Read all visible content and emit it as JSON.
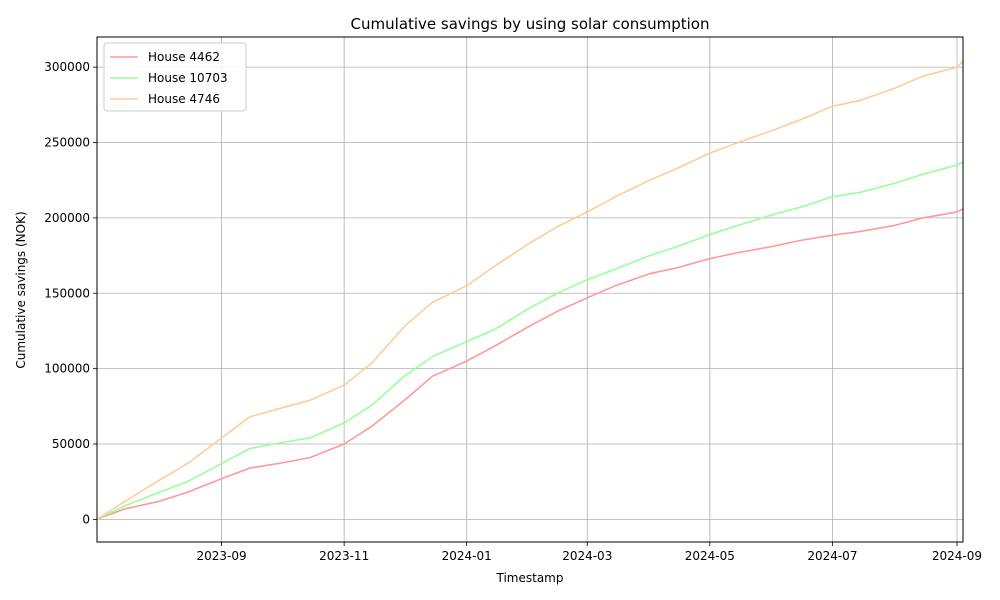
{
  "chart_data": {
    "type": "line",
    "title": "Cumulative savings by using solar consumption",
    "xlabel": "Timestamp",
    "ylabel": "Cumulative savings (NOK)",
    "x_ticks": [
      "2023-09",
      "2023-11",
      "2024-01",
      "2024-03",
      "2024-05",
      "2024-07",
      "2024-09"
    ],
    "y_ticks": [
      "0",
      "50000",
      "100000",
      "150000",
      "200000",
      "250000",
      "300000"
    ],
    "xlim": [
      "2023-07-01",
      "2024-09-04"
    ],
    "ylim": [
      -15000,
      320000
    ],
    "grid": true,
    "legend_position": "top-left",
    "series": [
      {
        "name": "House 4462",
        "color": "#ff9999",
        "points": [
          [
            "2023-07-01",
            0
          ],
          [
            "2023-07-15",
            7000
          ],
          [
            "2023-08-01",
            12000
          ],
          [
            "2023-08-15",
            18000
          ],
          [
            "2023-09-01",
            27000
          ],
          [
            "2023-09-15",
            34000
          ],
          [
            "2023-10-01",
            37500
          ],
          [
            "2023-10-15",
            41000
          ],
          [
            "2023-11-01",
            50000
          ],
          [
            "2023-11-15",
            62000
          ],
          [
            "2023-12-01",
            79000
          ],
          [
            "2023-12-15",
            95000
          ],
          [
            "2024-01-01",
            105000
          ],
          [
            "2024-01-15",
            115000
          ],
          [
            "2024-02-01",
            128000
          ],
          [
            "2024-02-15",
            138000
          ],
          [
            "2024-03-01",
            147000
          ],
          [
            "2024-03-15",
            155000
          ],
          [
            "2024-04-01",
            163000
          ],
          [
            "2024-04-15",
            167000
          ],
          [
            "2024-05-01",
            173000
          ],
          [
            "2024-05-15",
            177000
          ],
          [
            "2024-06-01",
            181000
          ],
          [
            "2024-06-15",
            185000
          ],
          [
            "2024-07-01",
            188500
          ],
          [
            "2024-07-15",
            191000
          ],
          [
            "2024-08-01",
            195000
          ],
          [
            "2024-08-15",
            200000
          ],
          [
            "2024-09-01",
            204000
          ],
          [
            "2024-09-04",
            206000
          ]
        ]
      },
      {
        "name": "House 10703",
        "color": "#99ff99",
        "points": [
          [
            "2023-07-01",
            0
          ],
          [
            "2023-07-15",
            9000
          ],
          [
            "2023-08-01",
            18000
          ],
          [
            "2023-08-15",
            25000
          ],
          [
            "2023-09-01",
            37000
          ],
          [
            "2023-09-15",
            47000
          ],
          [
            "2023-10-01",
            51000
          ],
          [
            "2023-10-15",
            54000
          ],
          [
            "2023-11-01",
            64000
          ],
          [
            "2023-11-15",
            76000
          ],
          [
            "2023-12-01",
            95000
          ],
          [
            "2023-12-15",
            108000
          ],
          [
            "2024-01-01",
            118000
          ],
          [
            "2024-01-15",
            126000
          ],
          [
            "2024-02-01",
            140000
          ],
          [
            "2024-02-15",
            150000
          ],
          [
            "2024-03-01",
            159000
          ],
          [
            "2024-03-15",
            166000
          ],
          [
            "2024-04-01",
            175000
          ],
          [
            "2024-04-15",
            181000
          ],
          [
            "2024-05-01",
            189000
          ],
          [
            "2024-05-15",
            195000
          ],
          [
            "2024-06-01",
            202000
          ],
          [
            "2024-06-15",
            207000
          ],
          [
            "2024-07-01",
            214000
          ],
          [
            "2024-07-15",
            217000
          ],
          [
            "2024-08-01",
            223000
          ],
          [
            "2024-08-15",
            229000
          ],
          [
            "2024-09-01",
            235000
          ],
          [
            "2024-09-04",
            237000
          ]
        ]
      },
      {
        "name": "House 4746",
        "color": "#ffcc99",
        "points": [
          [
            "2023-07-01",
            0
          ],
          [
            "2023-07-15",
            12000
          ],
          [
            "2023-08-01",
            26000
          ],
          [
            "2023-08-15",
            37000
          ],
          [
            "2023-09-01",
            54000
          ],
          [
            "2023-09-15",
            68000
          ],
          [
            "2023-10-01",
            74000
          ],
          [
            "2023-10-15",
            79000
          ],
          [
            "2023-11-01",
            89000
          ],
          [
            "2023-11-15",
            104000
          ],
          [
            "2023-12-01",
            128000
          ],
          [
            "2023-12-15",
            144000
          ],
          [
            "2024-01-01",
            155000
          ],
          [
            "2024-01-15",
            168000
          ],
          [
            "2024-02-01",
            183000
          ],
          [
            "2024-02-15",
            194000
          ],
          [
            "2024-03-01",
            204000
          ],
          [
            "2024-03-15",
            214000
          ],
          [
            "2024-04-01",
            225000
          ],
          [
            "2024-04-15",
            233000
          ],
          [
            "2024-05-01",
            243000
          ],
          [
            "2024-05-15",
            250000
          ],
          [
            "2024-06-01",
            258000
          ],
          [
            "2024-06-15",
            265000
          ],
          [
            "2024-07-01",
            274000
          ],
          [
            "2024-07-15",
            278000
          ],
          [
            "2024-08-01",
            286000
          ],
          [
            "2024-08-15",
            294000
          ],
          [
            "2024-09-01",
            300000
          ],
          [
            "2024-09-04",
            304000
          ]
        ]
      }
    ]
  }
}
